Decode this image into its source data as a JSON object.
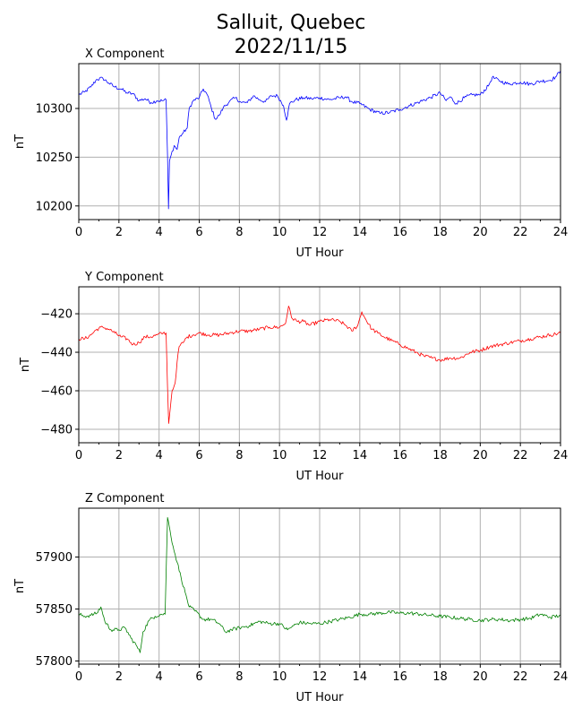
{
  "title": {
    "line1": "Salluit, Quebec",
    "line2": "2022/11/15"
  },
  "colors": {
    "X": "#0000ff",
    "Y": "#ff0000",
    "Z": "#008000",
    "grid": "#b0b0b0"
  },
  "chart_data": [
    {
      "type": "line",
      "title": "X Component",
      "xlabel": "UT Hour",
      "ylabel": "nT",
      "xlim": [
        0,
        24
      ],
      "ylim": [
        10186,
        10346
      ],
      "xticks": [
        0,
        2,
        4,
        6,
        8,
        10,
        12,
        14,
        16,
        18,
        20,
        22,
        24
      ],
      "yticks": [
        10200,
        10250,
        10300
      ],
      "grid": true,
      "series": [
        {
          "color": "#0000ff",
          "points": [
            [
              0,
              10314
            ],
            [
              0.3,
              10317
            ],
            [
              0.6,
              10322
            ],
            [
              0.9,
              10330
            ],
            [
              1.2,
              10331
            ],
            [
              1.5,
              10326
            ],
            [
              1.8,
              10322
            ],
            [
              2.1,
              10320
            ],
            [
              2.4,
              10316
            ],
            [
              2.7,
              10315
            ],
            [
              3.0,
              10308
            ],
            [
              3.3,
              10310
            ],
            [
              3.6,
              10306
            ],
            [
              3.9,
              10308
            ],
            [
              4.2,
              10308
            ],
            [
              4.35,
              10309
            ],
            [
              4.42,
              10252
            ],
            [
              4.47,
              10197
            ],
            [
              4.52,
              10246
            ],
            [
              4.6,
              10252
            ],
            [
              4.75,
              10262
            ],
            [
              4.9,
              10258
            ],
            [
              5.0,
              10270
            ],
            [
              5.2,
              10275
            ],
            [
              5.4,
              10280
            ],
            [
              5.5,
              10300
            ],
            [
              5.7,
              10308
            ],
            [
              6.0,
              10311
            ],
            [
              6.2,
              10320
            ],
            [
              6.4,
              10314
            ],
            [
              6.6,
              10301
            ],
            [
              6.8,
              10289
            ],
            [
              7.0,
              10293
            ],
            [
              7.2,
              10301
            ],
            [
              7.5,
              10307
            ],
            [
              7.8,
              10311
            ],
            [
              8.1,
              10306
            ],
            [
              8.4,
              10306
            ],
            [
              8.7,
              10313
            ],
            [
              9.0,
              10309
            ],
            [
              9.3,
              10307
            ],
            [
              9.6,
              10313
            ],
            [
              9.9,
              10313
            ],
            [
              10.2,
              10303
            ],
            [
              10.35,
              10288
            ],
            [
              10.5,
              10305
            ],
            [
              10.8,
              10309
            ],
            [
              11.2,
              10311
            ],
            [
              11.6,
              10310
            ],
            [
              12.0,
              10311
            ],
            [
              12.5,
              10309
            ],
            [
              13.0,
              10311
            ],
            [
              13.3,
              10312
            ],
            [
              13.6,
              10307
            ],
            [
              14.0,
              10305
            ],
            [
              14.5,
              10299
            ],
            [
              15.0,
              10295
            ],
            [
              15.5,
              10296
            ],
            [
              16.0,
              10299
            ],
            [
              16.5,
              10303
            ],
            [
              17.0,
              10307
            ],
            [
              17.5,
              10311
            ],
            [
              18.0,
              10316
            ],
            [
              18.3,
              10308
            ],
            [
              18.5,
              10312
            ],
            [
              18.8,
              10305
            ],
            [
              19.2,
              10311
            ],
            [
              19.6,
              10314
            ],
            [
              20.0,
              10314
            ],
            [
              20.4,
              10323
            ],
            [
              20.6,
              10332
            ],
            [
              21.0,
              10328
            ],
            [
              21.4,
              10325
            ],
            [
              22.0,
              10327
            ],
            [
              22.5,
              10325
            ],
            [
              23.0,
              10328
            ],
            [
              23.5,
              10329
            ],
            [
              23.8,
              10333
            ],
            [
              24.0,
              10339
            ]
          ]
        }
      ]
    },
    {
      "type": "line",
      "title": "Y Component",
      "xlabel": "UT Hour",
      "ylabel": "nT",
      "xlim": [
        0,
        24
      ],
      "ylim": [
        -487,
        -406
      ],
      "xticks": [
        0,
        2,
        4,
        6,
        8,
        10,
        12,
        14,
        16,
        18,
        20,
        22,
        24
      ],
      "yticks": [
        -480,
        -460,
        -440,
        -420
      ],
      "grid": true,
      "series": [
        {
          "color": "#ff0000",
          "points": [
            [
              0,
              -433
            ],
            [
              0.3,
              -433
            ],
            [
              0.6,
              -431
            ],
            [
              0.9,
              -428
            ],
            [
              1.2,
              -427
            ],
            [
              1.5,
              -428
            ],
            [
              1.8,
              -430
            ],
            [
              2.1,
              -432
            ],
            [
              2.4,
              -433
            ],
            [
              2.7,
              -436
            ],
            [
              3.0,
              -435
            ],
            [
              3.3,
              -432
            ],
            [
              3.6,
              -432
            ],
            [
              3.9,
              -431
            ],
            [
              4.2,
              -430
            ],
            [
              4.35,
              -430
            ],
            [
              4.42,
              -458
            ],
            [
              4.48,
              -477
            ],
            [
              4.55,
              -470
            ],
            [
              4.65,
              -460
            ],
            [
              4.8,
              -456
            ],
            [
              4.9,
              -445
            ],
            [
              5.0,
              -437
            ],
            [
              5.2,
              -435
            ],
            [
              5.4,
              -432
            ],
            [
              5.7,
              -431
            ],
            [
              6.0,
              -430
            ],
            [
              6.5,
              -431
            ],
            [
              7.0,
              -431
            ],
            [
              7.5,
              -430
            ],
            [
              8.0,
              -429
            ],
            [
              8.5,
              -429
            ],
            [
              9.0,
              -428
            ],
            [
              9.5,
              -427
            ],
            [
              10.0,
              -427
            ],
            [
              10.3,
              -425
            ],
            [
              10.45,
              -416
            ],
            [
              10.6,
              -422
            ],
            [
              10.9,
              -424
            ],
            [
              11.2,
              -424
            ],
            [
              11.5,
              -426
            ],
            [
              12.0,
              -424
            ],
            [
              12.5,
              -423
            ],
            [
              13.0,
              -424
            ],
            [
              13.3,
              -426
            ],
            [
              13.6,
              -429
            ],
            [
              13.9,
              -426
            ],
            [
              14.1,
              -419
            ],
            [
              14.3,
              -423
            ],
            [
              14.6,
              -428
            ],
            [
              14.9,
              -430
            ],
            [
              15.2,
              -432
            ],
            [
              15.6,
              -434
            ],
            [
              16.0,
              -436
            ],
            [
              16.4,
              -438
            ],
            [
              16.8,
              -440
            ],
            [
              17.2,
              -442
            ],
            [
              17.6,
              -443
            ],
            [
              18.0,
              -444
            ],
            [
              18.5,
              -443
            ],
            [
              19.0,
              -443
            ],
            [
              19.5,
              -440
            ],
            [
              20.0,
              -439
            ],
            [
              20.5,
              -437
            ],
            [
              21.0,
              -436
            ],
            [
              21.5,
              -435
            ],
            [
              22.0,
              -434
            ],
            [
              22.5,
              -433
            ],
            [
              23.0,
              -432
            ],
            [
              23.5,
              -431
            ],
            [
              24.0,
              -430
            ]
          ]
        }
      ]
    },
    {
      "type": "line",
      "title": "Z Component",
      "xlabel": "UT Hour",
      "ylabel": "nT",
      "xlim": [
        0,
        24
      ],
      "ylim": [
        57797,
        57947
      ],
      "xticks": [
        0,
        2,
        4,
        6,
        8,
        10,
        12,
        14,
        16,
        18,
        20,
        22,
        24
      ],
      "yticks": [
        57800,
        57850,
        57900
      ],
      "grid": true,
      "series": [
        {
          "color": "#008000",
          "points": [
            [
              0,
              57845
            ],
            [
              0.3,
              57843
            ],
            [
              0.6,
              57844
            ],
            [
              0.9,
              57846
            ],
            [
              1.1,
              57852
            ],
            [
              1.3,
              57838
            ],
            [
              1.6,
              57830
            ],
            [
              2.0,
              57830
            ],
            [
              2.3,
              57832
            ],
            [
              2.6,
              57822
            ],
            [
              2.9,
              57814
            ],
            [
              3.05,
              57808
            ],
            [
              3.2,
              57828
            ],
            [
              3.5,
              57839
            ],
            [
              3.8,
              57843
            ],
            [
              4.1,
              57845
            ],
            [
              4.3,
              57845
            ],
            [
              4.42,
              57938
            ],
            [
              4.55,
              57925
            ],
            [
              4.7,
              57910
            ],
            [
              4.9,
              57895
            ],
            [
              5.1,
              57880
            ],
            [
              5.3,
              57866
            ],
            [
              5.5,
              57852
            ],
            [
              5.8,
              57848
            ],
            [
              6.2,
              57840
            ],
            [
              6.6,
              57840
            ],
            [
              7.0,
              57836
            ],
            [
              7.3,
              57828
            ],
            [
              7.6,
              57830
            ],
            [
              8.0,
              57832
            ],
            [
              8.5,
              57834
            ],
            [
              9.0,
              57838
            ],
            [
              9.5,
              57836
            ],
            [
              10.0,
              57836
            ],
            [
              10.4,
              57830
            ],
            [
              10.7,
              57834
            ],
            [
              11.0,
              57837
            ],
            [
              11.5,
              57836
            ],
            [
              12.0,
              57836
            ],
            [
              12.5,
              57838
            ],
            [
              13.0,
              57840
            ],
            [
              13.5,
              57842
            ],
            [
              14.0,
              57845
            ],
            [
              14.5,
              57845
            ],
            [
              15.0,
              57846
            ],
            [
              15.5,
              57847
            ],
            [
              16.0,
              57846
            ],
            [
              16.5,
              57846
            ],
            [
              17.0,
              57845
            ],
            [
              17.5,
              57844
            ],
            [
              18.0,
              57843
            ],
            [
              18.5,
              57842
            ],
            [
              19.0,
              57841
            ],
            [
              19.5,
              57840
            ],
            [
              20.0,
              57839
            ],
            [
              20.5,
              57840
            ],
            [
              21.0,
              57840
            ],
            [
              21.5,
              57839
            ],
            [
              22.0,
              57840
            ],
            [
              22.5,
              57841
            ],
            [
              23.0,
              57845
            ],
            [
              23.5,
              57842
            ],
            [
              24.0,
              57844
            ]
          ]
        }
      ]
    }
  ]
}
